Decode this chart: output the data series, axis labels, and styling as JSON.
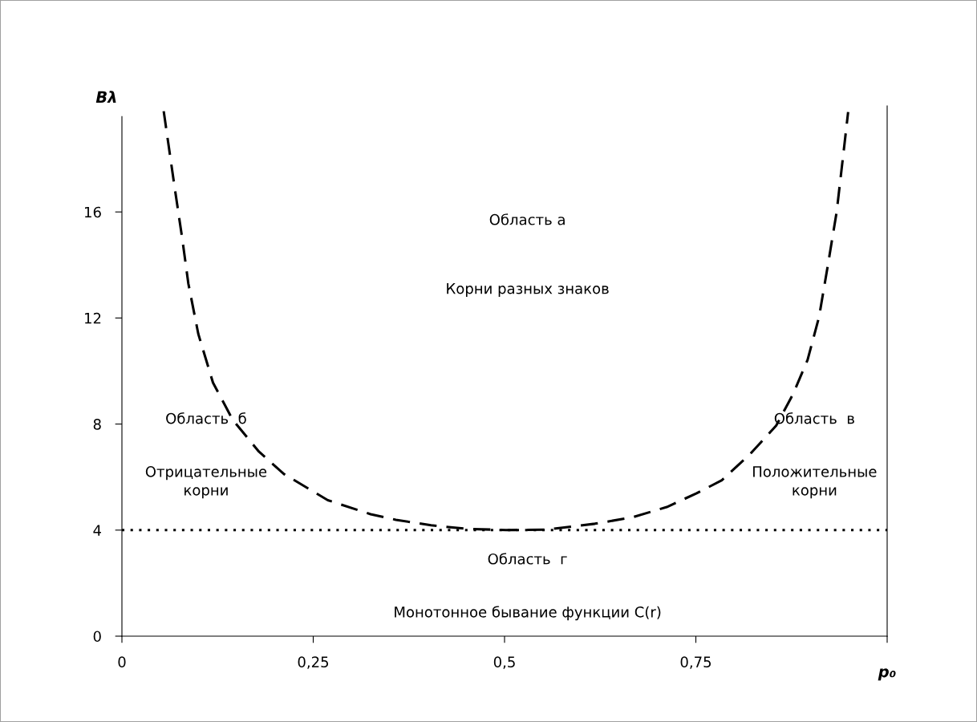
{
  "chart_data": {
    "type": "line",
    "xlabel": "p₀",
    "ylabel": "Bλ",
    "x": [
      0.0546,
      0.068,
      0.079,
      0.0868,
      0.0998,
      0.119,
      0.145,
      0.179,
      0.212,
      0.269,
      0.325,
      0.358,
      0.404,
      0.45,
      0.502,
      0.555,
      0.618,
      0.667,
      0.712,
      0.751,
      0.784,
      0.821,
      0.855,
      0.877,
      0.896,
      0.911,
      0.922,
      0.934,
      0.944,
      0.949
    ],
    "series": [
      {
        "color": "#000000",
        "line_style": "dashed",
        "values": [
          19.8,
          17.1,
          14.96,
          13.3,
          11.4,
          9.56,
          8.15,
          6.96,
          6.11,
          5.13,
          4.6,
          4.39,
          4.18,
          4.05,
          4.0,
          4.02,
          4.24,
          4.48,
          4.87,
          5.39,
          5.88,
          6.87,
          7.94,
          9.13,
          10.42,
          12.04,
          13.9,
          16.0,
          18.5,
          19.77
        ]
      }
    ],
    "ref_lines": [
      {
        "axis": "y",
        "value": 4,
        "color": "#000000",
        "line_style": "dotted"
      }
    ],
    "xlim": [
      0,
      1
    ],
    "ylim": [
      0,
      20
    ],
    "xticks": [
      0,
      {
        "value": 0.25,
        "label": "0,25"
      },
      {
        "value": 0.5,
        "label": "0,5"
      },
      {
        "value": 0.75,
        "label": "0,75"
      },
      {
        "value": 1,
        "label": null
      }
    ],
    "yticks": [
      0,
      4,
      8,
      12,
      16
    ],
    "grid": false,
    "legend": false,
    "marker": "none",
    "annotations": [
      "Область а",
      "Корни разных знаков",
      "Область  б",
      "Отрицательные\nкорни",
      "Область  в",
      "Положительные\nкорни",
      "Область  г",
      "Монотонное бывание функции C(r)"
    ]
  }
}
